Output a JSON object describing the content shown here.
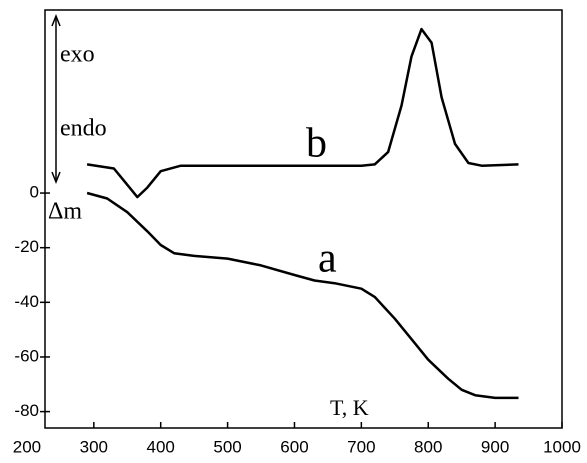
{
  "chart_data": {
    "type": "line",
    "series": [
      {
        "name": "a",
        "color": "#000000",
        "x": [
          290,
          320,
          350,
          380,
          400,
          420,
          450,
          500,
          550,
          600,
          630,
          660,
          700,
          720,
          750,
          780,
          800,
          830,
          850,
          870,
          900,
          935
        ],
        "values": [
          0,
          -2,
          -7,
          -14,
          -19,
          -22,
          -23,
          -24,
          -26.5,
          -30,
          -32,
          -33,
          -35,
          -38,
          -46,
          -55,
          -61,
          -68,
          -72,
          -74,
          -75,
          -75
        ]
      },
      {
        "name": "b",
        "color": "#000000",
        "x": [
          290,
          330,
          350,
          365,
          380,
          400,
          430,
          600,
          700,
          720,
          740,
          760,
          775,
          790,
          805,
          820,
          840,
          860,
          880,
          935
        ],
        "values": [
          10.5,
          9,
          3,
          -1.5,
          2,
          8,
          10,
          10,
          10,
          10.5,
          15,
          32,
          50,
          60,
          55,
          35,
          18,
          11,
          10,
          10.5
        ]
      }
    ],
    "xlim": [
      227,
      1000
    ],
    "xticks": [
      200,
      300,
      400,
      500,
      600,
      700,
      800,
      900,
      1000
    ],
    "ylim": [
      -86,
      67
    ],
    "yticks": [
      0,
      -20,
      -40,
      -60,
      -80
    ],
    "annotations": [
      "exo",
      "endo",
      "Δm",
      "T, K"
    ]
  }
}
